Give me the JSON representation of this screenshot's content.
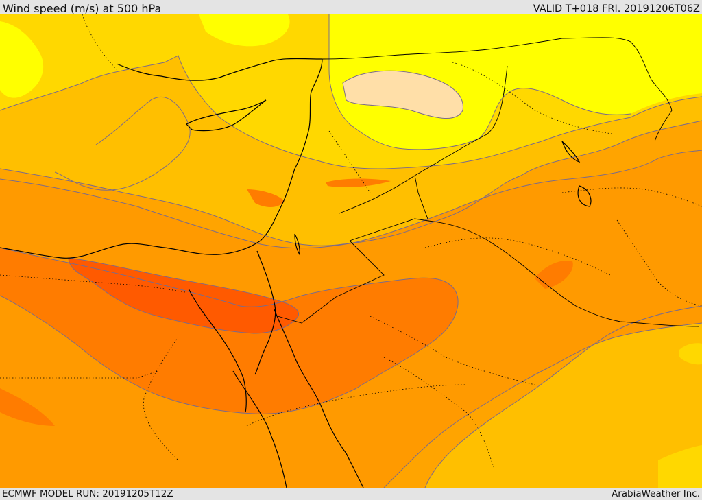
{
  "header": {
    "title": "Wind speed (m/s) at 500 hPa",
    "valid": "VALID T+018 FRI. 20191206T06Z"
  },
  "footer": {
    "model_run": "ECMWF MODEL RUN: 20191205T12Z",
    "credit": "ArabiaWeather Inc."
  },
  "colors": {
    "background_band": "#ffa400",
    "band_lightest": "#ffff00",
    "band_light": "#ffd800",
    "band_mid": "#ffbf00",
    "band_orange": "#ff9a00",
    "band_dark_orange": "#ff7c00",
    "band_max": "#ff5a00",
    "jet_core_low": "#ffdfa8",
    "contour_line": "#7b6b8a",
    "coastline": "#000000"
  }
}
